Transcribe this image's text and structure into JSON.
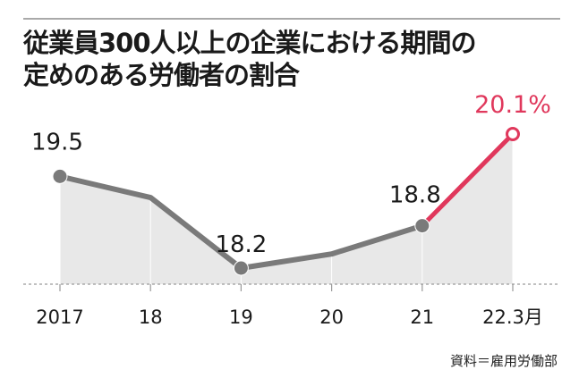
{
  "title_lines": [
    "従業員300人以上の企業における期間の",
    "定めのある労働者の割合"
  ],
  "source": "資料＝雇用労働部",
  "colors": {
    "line": "#7a7a7a",
    "highlight": "#e0385c",
    "area": "#e8e8e8"
  },
  "chart_data": {
    "type": "line",
    "categories": [
      "2017",
      "18",
      "19",
      "20",
      "21",
      "22.3月"
    ],
    "values": [
      19.5,
      19.2,
      18.2,
      18.4,
      18.8,
      20.1
    ],
    "point_labels": [
      "19.5",
      null,
      "18.2",
      null,
      "18.8",
      "20.1%"
    ],
    "markers": [
      0,
      2,
      4,
      5
    ],
    "highlight_last_segment": true,
    "ylim": [
      17.8,
      20.4
    ],
    "grid": false,
    "area_fill": true
  }
}
